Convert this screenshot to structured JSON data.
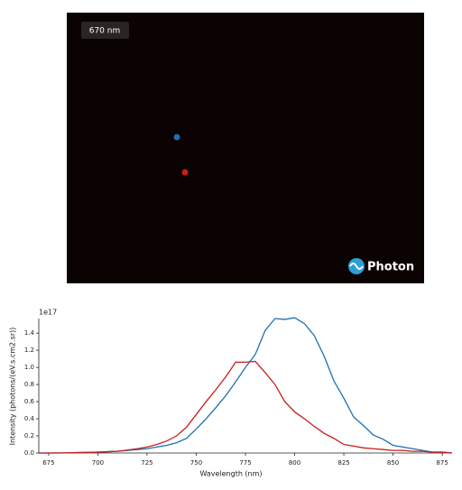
{
  "image_panel": {
    "label": "670 nm",
    "logo": "Photon"
  },
  "chart_data": {
    "type": "line",
    "multiplier": "1e17",
    "xlabel": "Wavelength (nm)",
    "ylabel": "Intensity (photons/(eV.s.cm2.sr))",
    "x": [
      670,
      680,
      690,
      700,
      710,
      720,
      725,
      730,
      735,
      740,
      745,
      750,
      755,
      760,
      765,
      770,
      775,
      780,
      785,
      790,
      795,
      800,
      805,
      810,
      815,
      820,
      825,
      830,
      835,
      840,
      845,
      850,
      855,
      860,
      865,
      870,
      875,
      880
    ],
    "series": [
      {
        "color": "#1f6fb0",
        "values": [
          0,
          0,
          0.005,
          0.01,
          0.02,
          0.04,
          0.05,
          0.07,
          0.09,
          0.12,
          0.17,
          0.28,
          0.4,
          0.53,
          0.67,
          0.83,
          1.0,
          1.15,
          1.43,
          1.57,
          1.56,
          1.58,
          1.51,
          1.37,
          1.13,
          0.84,
          0.64,
          0.42,
          0.32,
          0.21,
          0.16,
          0.09,
          0.07,
          0.05,
          0.03,
          0.01,
          0.01,
          0
        ]
      },
      {
        "color": "#c81e1e",
        "values": [
          0,
          0,
          0.005,
          0.01,
          0.02,
          0.05,
          0.07,
          0.1,
          0.14,
          0.2,
          0.3,
          0.45,
          0.6,
          0.74,
          0.89,
          1.06,
          1.06,
          1.07,
          0.94,
          0.8,
          0.6,
          0.48,
          0.4,
          0.31,
          0.23,
          0.17,
          0.1,
          0.08,
          0.06,
          0.05,
          0.04,
          0.03,
          0.03,
          0.02,
          0.02,
          0.01,
          0.01,
          0
        ]
      }
    ],
    "xlim": [
      670,
      880
    ],
    "ylim": [
      0,
      1.57
    ],
    "xticks": [
      675,
      700,
      725,
      750,
      775,
      800,
      825,
      850,
      875
    ],
    "yticks": [
      {
        "value": 0,
        "label": "0.0"
      },
      0.2,
      0.4,
      0.6,
      0.8,
      {
        "value": 1,
        "label": "1.0"
      },
      1.2,
      1.4
    ]
  }
}
